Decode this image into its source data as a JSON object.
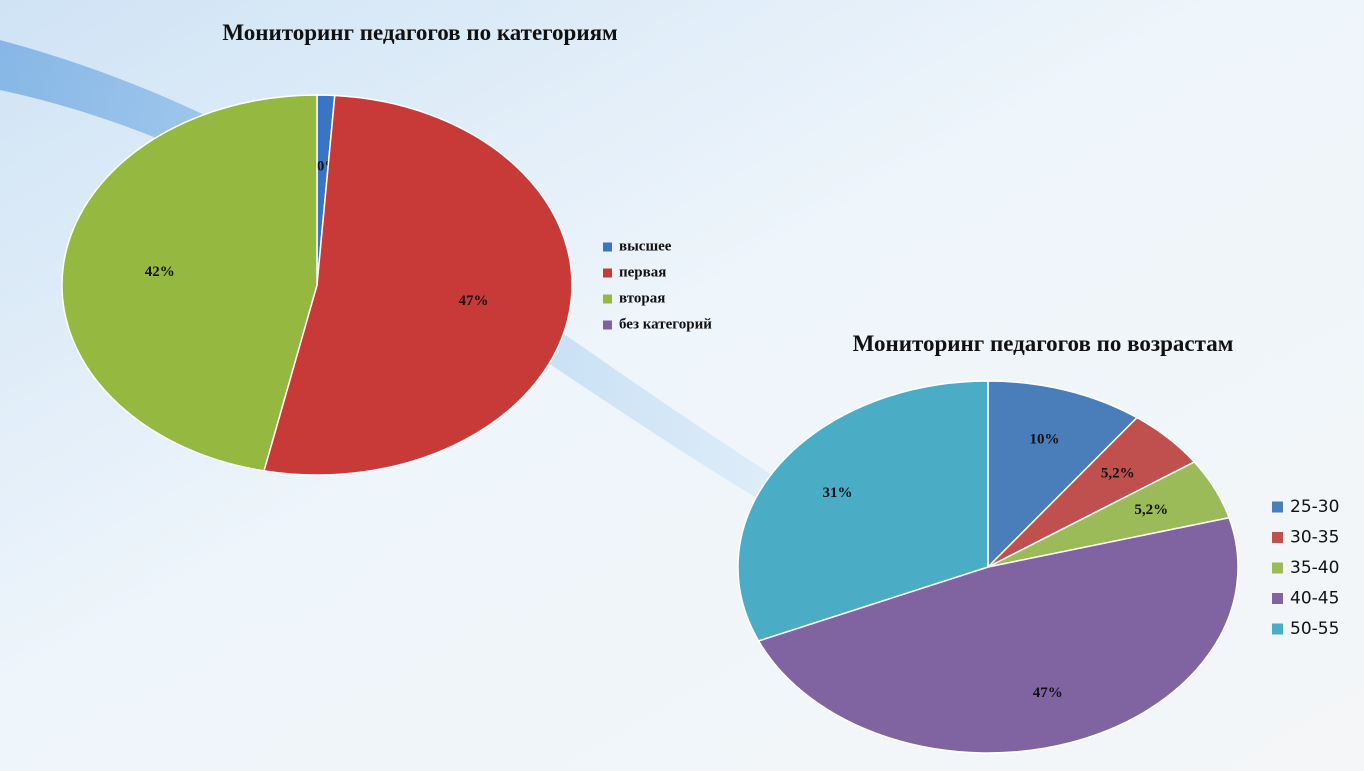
{
  "chart_data": [
    {
      "type": "pie",
      "title": "Мониторинг педагогов по категориям",
      "categories": [
        "высшее",
        "первая",
        "вторая",
        "без категорий"
      ],
      "values": [
        1.0,
        47,
        42,
        null
      ],
      "value_labels": [
        "1,0%",
        "47%",
        "42%",
        null
      ],
      "colors": [
        "#3a74c4",
        "#c83a38",
        "#94b840",
        "#7f5fa6"
      ],
      "legend": "right"
    },
    {
      "type": "pie",
      "title": "Мониторинг педагогов по возрастам",
      "categories": [
        "25-30",
        "30-35",
        "35-40",
        "40-45",
        "50-55"
      ],
      "values": [
        10,
        5.2,
        5.2,
        47,
        31
      ],
      "value_labels": [
        "10%",
        "5,2%",
        "5,2%",
        "47%",
        "31%"
      ],
      "colors": [
        "#4a7ebb",
        "#c0504d",
        "#9bbb59",
        "#8064a2",
        "#4bacc6"
      ],
      "legend": "right"
    }
  ]
}
